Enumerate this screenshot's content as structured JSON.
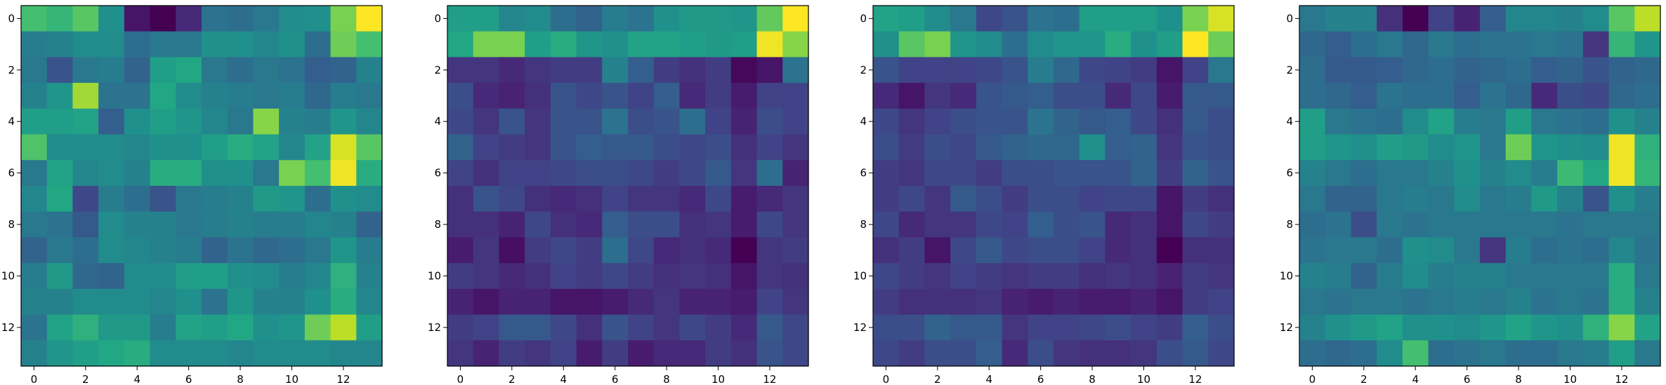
{
  "chart_data": [
    {
      "type": "heatmap",
      "colormap": "viridis",
      "nrows": 14,
      "ncols": 14,
      "xticks": [
        0,
        2,
        4,
        6,
        8,
        10,
        12
      ],
      "yticks": [
        0,
        2,
        4,
        6,
        8,
        10,
        12
      ],
      "xtick_labels": [
        "0",
        "2",
        "4",
        "6",
        "8",
        "10",
        "12"
      ],
      "ytick_labels": [
        "0",
        "2",
        "4",
        "6",
        "8",
        "10",
        "12"
      ],
      "values": [
        [
          0.7,
          0.66,
          0.74,
          0.5,
          0.06,
          0.0,
          0.12,
          0.38,
          0.36,
          0.4,
          0.48,
          0.5,
          0.8,
          1.0
        ],
        [
          0.42,
          0.44,
          0.48,
          0.48,
          0.36,
          0.4,
          0.4,
          0.5,
          0.5,
          0.46,
          0.5,
          0.36,
          0.78,
          0.7
        ],
        [
          0.4,
          0.26,
          0.4,
          0.42,
          0.32,
          0.56,
          0.6,
          0.4,
          0.36,
          0.4,
          0.38,
          0.3,
          0.32,
          0.44
        ],
        [
          0.44,
          0.52,
          0.86,
          0.38,
          0.38,
          0.6,
          0.48,
          0.44,
          0.42,
          0.4,
          0.42,
          0.34,
          0.42,
          0.4
        ],
        [
          0.56,
          0.56,
          0.58,
          0.3,
          0.5,
          0.56,
          0.52,
          0.46,
          0.4,
          0.82,
          0.44,
          0.42,
          0.52,
          0.46
        ],
        [
          0.72,
          0.48,
          0.48,
          0.48,
          0.46,
          0.5,
          0.5,
          0.56,
          0.62,
          0.58,
          0.46,
          0.58,
          0.94,
          0.74
        ],
        [
          0.4,
          0.58,
          0.46,
          0.48,
          0.44,
          0.62,
          0.62,
          0.5,
          0.5,
          0.4,
          0.8,
          0.7,
          0.98,
          0.62
        ],
        [
          0.46,
          0.6,
          0.22,
          0.42,
          0.36,
          0.26,
          0.4,
          0.42,
          0.44,
          0.54,
          0.52,
          0.36,
          0.5,
          0.48
        ],
        [
          0.4,
          0.38,
          0.28,
          0.48,
          0.44,
          0.44,
          0.4,
          0.42,
          0.44,
          0.42,
          0.42,
          0.46,
          0.44,
          0.32
        ],
        [
          0.32,
          0.4,
          0.36,
          0.48,
          0.46,
          0.44,
          0.42,
          0.32,
          0.38,
          0.34,
          0.36,
          0.4,
          0.52,
          0.42
        ],
        [
          0.42,
          0.54,
          0.34,
          0.32,
          0.48,
          0.48,
          0.56,
          0.56,
          0.5,
          0.48,
          0.42,
          0.46,
          0.64,
          0.44
        ],
        [
          0.44,
          0.44,
          0.48,
          0.48,
          0.48,
          0.46,
          0.5,
          0.38,
          0.52,
          0.44,
          0.44,
          0.5,
          0.62,
          0.46
        ],
        [
          0.38,
          0.58,
          0.64,
          0.54,
          0.54,
          0.42,
          0.58,
          0.56,
          0.6,
          0.5,
          0.52,
          0.78,
          0.9,
          0.56
        ],
        [
          0.44,
          0.52,
          0.56,
          0.6,
          0.62,
          0.48,
          0.48,
          0.48,
          0.46,
          0.48,
          0.48,
          0.48,
          0.46,
          0.46
        ]
      ]
    },
    {
      "type": "heatmap",
      "colormap": "viridis",
      "nrows": 14,
      "ncols": 14,
      "xticks": [
        0,
        2,
        4,
        6,
        8,
        10,
        12
      ],
      "yticks": [
        0,
        2,
        4,
        6,
        8,
        10,
        12
      ],
      "xtick_labels": [
        "0",
        "2",
        "4",
        "6",
        "8",
        "10",
        "12"
      ],
      "ytick_labels": [
        "0",
        "2",
        "4",
        "6",
        "8",
        "10",
        "12"
      ],
      "values": [
        [
          0.56,
          0.56,
          0.46,
          0.48,
          0.36,
          0.32,
          0.42,
          0.38,
          0.5,
          0.54,
          0.54,
          0.52,
          0.76,
          1.0
        ],
        [
          0.6,
          0.8,
          0.8,
          0.56,
          0.62,
          0.52,
          0.5,
          0.58,
          0.58,
          0.56,
          0.54,
          0.56,
          0.98,
          0.82
        ],
        [
          0.16,
          0.16,
          0.12,
          0.16,
          0.18,
          0.18,
          0.44,
          0.3,
          0.18,
          0.14,
          0.18,
          0.02,
          0.06,
          0.38
        ],
        [
          0.24,
          0.12,
          0.1,
          0.14,
          0.26,
          0.22,
          0.26,
          0.2,
          0.3,
          0.12,
          0.18,
          0.08,
          0.2,
          0.2
        ],
        [
          0.22,
          0.16,
          0.26,
          0.16,
          0.26,
          0.26,
          0.38,
          0.24,
          0.26,
          0.36,
          0.2,
          0.1,
          0.24,
          0.2
        ],
        [
          0.32,
          0.2,
          0.18,
          0.16,
          0.26,
          0.3,
          0.28,
          0.28,
          0.24,
          0.22,
          0.24,
          0.14,
          0.2,
          0.16
        ],
        [
          0.2,
          0.14,
          0.2,
          0.2,
          0.22,
          0.24,
          0.24,
          0.22,
          0.18,
          0.22,
          0.28,
          0.16,
          0.36,
          0.1
        ],
        [
          0.14,
          0.26,
          0.22,
          0.14,
          0.12,
          0.14,
          0.2,
          0.16,
          0.16,
          0.12,
          0.22,
          0.08,
          0.12,
          0.16
        ],
        [
          0.14,
          0.14,
          0.1,
          0.22,
          0.14,
          0.12,
          0.3,
          0.24,
          0.24,
          0.14,
          0.16,
          0.08,
          0.22,
          0.16
        ],
        [
          0.08,
          0.16,
          0.04,
          0.18,
          0.22,
          0.18,
          0.36,
          0.22,
          0.12,
          0.14,
          0.12,
          0.0,
          0.16,
          0.18
        ],
        [
          0.18,
          0.16,
          0.12,
          0.14,
          0.2,
          0.18,
          0.22,
          0.18,
          0.14,
          0.16,
          0.14,
          0.06,
          0.16,
          0.14
        ],
        [
          0.1,
          0.06,
          0.1,
          0.1,
          0.06,
          0.06,
          0.08,
          0.12,
          0.16,
          0.1,
          0.1,
          0.08,
          0.2,
          0.16
        ],
        [
          0.18,
          0.2,
          0.28,
          0.28,
          0.22,
          0.14,
          0.26,
          0.2,
          0.16,
          0.22,
          0.18,
          0.12,
          0.28,
          0.22
        ],
        [
          0.16,
          0.1,
          0.18,
          0.16,
          0.2,
          0.08,
          0.18,
          0.08,
          0.12,
          0.12,
          0.18,
          0.14,
          0.26,
          0.22
        ]
      ]
    },
    {
      "type": "heatmap",
      "colormap": "viridis",
      "nrows": 14,
      "ncols": 14,
      "xticks": [
        0,
        2,
        4,
        6,
        8,
        10,
        12
      ],
      "yticks": [
        0,
        2,
        4,
        6,
        8,
        10,
        12
      ],
      "xtick_labels": [
        "0",
        "2",
        "4",
        "6",
        "8",
        "10",
        "12"
      ],
      "ytick_labels": [
        "0",
        "2",
        "4",
        "6",
        "8",
        "10",
        "12"
      ],
      "values": [
        [
          0.58,
          0.56,
          0.48,
          0.4,
          0.22,
          0.26,
          0.38,
          0.36,
          0.56,
          0.56,
          0.56,
          0.5,
          0.8,
          0.94
        ],
        [
          0.5,
          0.74,
          0.8,
          0.52,
          0.48,
          0.36,
          0.48,
          0.52,
          0.52,
          0.62,
          0.5,
          0.56,
          1.0,
          0.78
        ],
        [
          0.26,
          0.2,
          0.2,
          0.2,
          0.22,
          0.26,
          0.42,
          0.34,
          0.22,
          0.2,
          0.18,
          0.06,
          0.2,
          0.4
        ],
        [
          0.12,
          0.06,
          0.16,
          0.12,
          0.26,
          0.28,
          0.3,
          0.24,
          0.24,
          0.12,
          0.22,
          0.08,
          0.28,
          0.28
        ],
        [
          0.22,
          0.16,
          0.2,
          0.24,
          0.26,
          0.26,
          0.38,
          0.32,
          0.28,
          0.3,
          0.22,
          0.14,
          0.28,
          0.24
        ],
        [
          0.24,
          0.18,
          0.24,
          0.22,
          0.28,
          0.32,
          0.34,
          0.34,
          0.5,
          0.3,
          0.32,
          0.16,
          0.26,
          0.24
        ],
        [
          0.18,
          0.16,
          0.22,
          0.22,
          0.18,
          0.24,
          0.24,
          0.26,
          0.26,
          0.26,
          0.32,
          0.18,
          0.32,
          0.26
        ],
        [
          0.18,
          0.22,
          0.16,
          0.28,
          0.24,
          0.18,
          0.24,
          0.24,
          0.2,
          0.22,
          0.22,
          0.06,
          0.18,
          0.14
        ],
        [
          0.22,
          0.12,
          0.16,
          0.16,
          0.22,
          0.2,
          0.3,
          0.24,
          0.26,
          0.12,
          0.14,
          0.06,
          0.22,
          0.18
        ],
        [
          0.14,
          0.18,
          0.06,
          0.22,
          0.28,
          0.22,
          0.24,
          0.24,
          0.2,
          0.12,
          0.14,
          0.0,
          0.14,
          0.14
        ],
        [
          0.22,
          0.18,
          0.16,
          0.2,
          0.18,
          0.16,
          0.18,
          0.18,
          0.14,
          0.16,
          0.14,
          0.1,
          0.18,
          0.16
        ],
        [
          0.18,
          0.14,
          0.14,
          0.14,
          0.16,
          0.1,
          0.08,
          0.1,
          0.08,
          0.08,
          0.1,
          0.06,
          0.18,
          0.2
        ],
        [
          0.24,
          0.24,
          0.32,
          0.28,
          0.28,
          0.16,
          0.2,
          0.2,
          0.22,
          0.24,
          0.2,
          0.18,
          0.3,
          0.24
        ],
        [
          0.22,
          0.18,
          0.24,
          0.24,
          0.3,
          0.12,
          0.24,
          0.16,
          0.14,
          0.14,
          0.16,
          0.24,
          0.28,
          0.22
        ]
      ]
    },
    {
      "type": "heatmap",
      "colormap": "viridis",
      "nrows": 14,
      "ncols": 14,
      "xticks": [
        0,
        2,
        4,
        6,
        8,
        10,
        12
      ],
      "yticks": [
        0,
        2,
        4,
        6,
        8,
        10,
        12
      ],
      "xtick_labels": [
        "0",
        "2",
        "4",
        "6",
        "8",
        "10",
        "12"
      ],
      "ytick_labels": [
        "0",
        "2",
        "4",
        "6",
        "8",
        "10",
        "12"
      ],
      "values": [
        [
          0.4,
          0.44,
          0.44,
          0.14,
          0.0,
          0.2,
          0.1,
          0.3,
          0.46,
          0.46,
          0.44,
          0.48,
          0.74,
          0.9
        ],
        [
          0.34,
          0.3,
          0.36,
          0.4,
          0.34,
          0.4,
          0.36,
          0.38,
          0.38,
          0.4,
          0.38,
          0.16,
          0.66,
          0.52
        ],
        [
          0.36,
          0.28,
          0.28,
          0.3,
          0.34,
          0.36,
          0.32,
          0.34,
          0.36,
          0.3,
          0.32,
          0.26,
          0.32,
          0.34
        ],
        [
          0.36,
          0.34,
          0.3,
          0.38,
          0.36,
          0.36,
          0.3,
          0.38,
          0.34,
          0.12,
          0.24,
          0.22,
          0.34,
          0.36
        ],
        [
          0.56,
          0.4,
          0.38,
          0.36,
          0.48,
          0.58,
          0.42,
          0.4,
          0.56,
          0.4,
          0.38,
          0.36,
          0.5,
          0.44
        ],
        [
          0.56,
          0.52,
          0.5,
          0.56,
          0.54,
          0.48,
          0.52,
          0.4,
          0.78,
          0.52,
          0.5,
          0.48,
          0.98,
          0.64
        ],
        [
          0.44,
          0.4,
          0.36,
          0.4,
          0.4,
          0.44,
          0.5,
          0.44,
          0.48,
          0.42,
          0.68,
          0.6,
          0.98,
          0.66
        ],
        [
          0.4,
          0.32,
          0.32,
          0.4,
          0.42,
          0.4,
          0.48,
          0.4,
          0.42,
          0.54,
          0.44,
          0.26,
          0.5,
          0.42
        ],
        [
          0.36,
          0.38,
          0.24,
          0.4,
          0.38,
          0.4,
          0.4,
          0.4,
          0.4,
          0.4,
          0.38,
          0.4,
          0.4,
          0.4
        ],
        [
          0.38,
          0.4,
          0.4,
          0.36,
          0.5,
          0.48,
          0.4,
          0.16,
          0.42,
          0.36,
          0.38,
          0.36,
          0.46,
          0.38
        ],
        [
          0.44,
          0.42,
          0.32,
          0.42,
          0.48,
          0.42,
          0.44,
          0.44,
          0.4,
          0.4,
          0.4,
          0.4,
          0.62,
          0.4
        ],
        [
          0.4,
          0.38,
          0.4,
          0.4,
          0.38,
          0.4,
          0.42,
          0.4,
          0.44,
          0.38,
          0.4,
          0.38,
          0.62,
          0.44
        ],
        [
          0.44,
          0.5,
          0.54,
          0.58,
          0.5,
          0.5,
          0.48,
          0.52,
          0.58,
          0.52,
          0.5,
          0.64,
          0.82,
          0.58
        ],
        [
          0.36,
          0.34,
          0.36,
          0.48,
          0.7,
          0.36,
          0.38,
          0.4,
          0.36,
          0.36,
          0.4,
          0.42,
          0.56,
          0.4
        ]
      ]
    }
  ]
}
